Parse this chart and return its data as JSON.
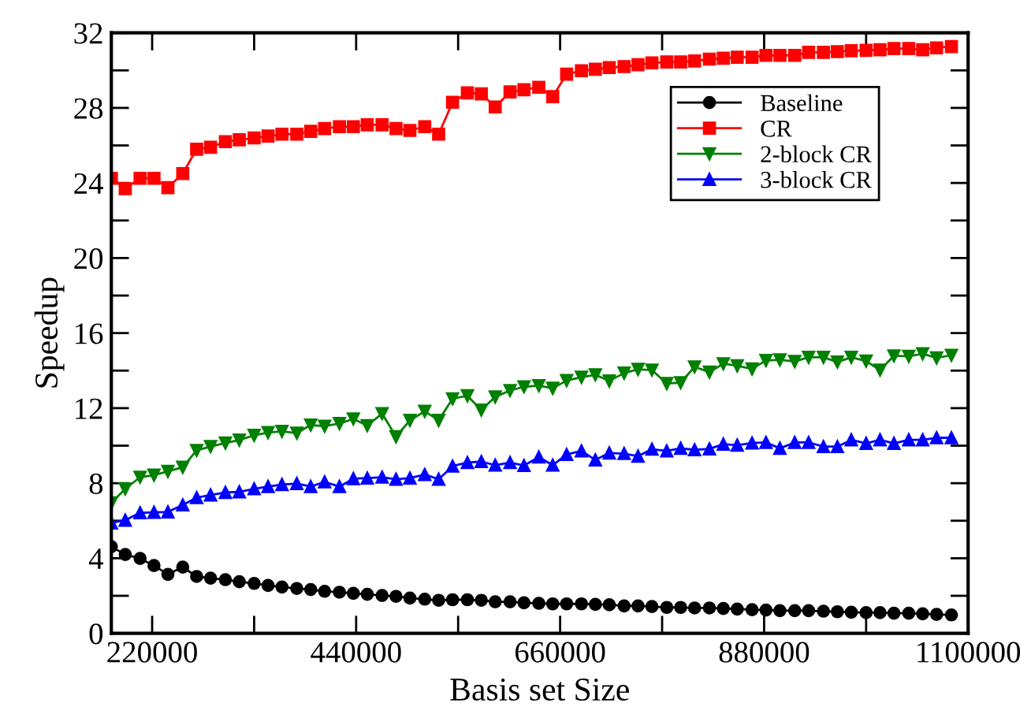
{
  "chart_data": {
    "type": "line",
    "xlabel": "Basis set Size",
    "ylabel": "Speedup",
    "x": [
      176000,
      191000,
      207000,
      222000,
      237000,
      253000,
      268000,
      283000,
      299000,
      314000,
      330000,
      345000,
      360000,
      376000,
      391000,
      406000,
      422000,
      437000,
      452000,
      468000,
      483000,
      498000,
      514000,
      529000,
      544000,
      560000,
      575000,
      590000,
      606000,
      621000,
      637000,
      652000,
      667000,
      683000,
      698000,
      713000,
      729000,
      744000,
      759000,
      775000,
      790000,
      805000,
      821000,
      836000,
      851000,
      867000,
      882000,
      897000,
      913000,
      928000,
      944000,
      959000,
      974000,
      990000,
      1005000,
      1020000,
      1036000,
      1051000,
      1066000,
      1082000
    ],
    "series": [
      {
        "name": "Baseline",
        "color": "#000000",
        "marker": "circle",
        "values": [
          4.62,
          4.2,
          3.99,
          3.61,
          3.14,
          3.53,
          3.03,
          2.94,
          2.86,
          2.75,
          2.66,
          2.55,
          2.47,
          2.39,
          2.33,
          2.24,
          2.19,
          2.13,
          2.08,
          2.02,
          1.97,
          1.88,
          1.82,
          1.76,
          1.79,
          1.79,
          1.76,
          1.68,
          1.68,
          1.63,
          1.6,
          1.57,
          1.57,
          1.57,
          1.54,
          1.52,
          1.46,
          1.46,
          1.43,
          1.38,
          1.38,
          1.35,
          1.35,
          1.32,
          1.29,
          1.26,
          1.24,
          1.21,
          1.21,
          1.21,
          1.18,
          1.15,
          1.12,
          1.1,
          1.1,
          1.07,
          1.07,
          1.04,
          1.01,
          0.98
        ]
      },
      {
        "name": "CR",
        "color": "#ff0000",
        "marker": "square",
        "values": [
          24.25,
          23.7,
          24.25,
          24.25,
          23.75,
          24.5,
          25.8,
          25.9,
          26.2,
          26.3,
          26.4,
          26.5,
          26.6,
          26.6,
          26.75,
          26.9,
          27.0,
          27.0,
          27.1,
          27.1,
          26.9,
          26.8,
          27.0,
          26.6,
          28.3,
          28.8,
          28.75,
          28.05,
          28.85,
          28.97,
          29.1,
          28.6,
          29.8,
          29.98,
          30.06,
          30.15,
          30.2,
          30.3,
          30.4,
          30.45,
          30.45,
          30.5,
          30.6,
          30.65,
          30.7,
          30.7,
          30.8,
          30.8,
          30.8,
          30.96,
          30.96,
          31.0,
          31.05,
          31.07,
          31.1,
          31.16,
          31.16,
          31.1,
          31.2,
          31.27
        ]
      },
      {
        "name": "2-block CR",
        "color": "#008000",
        "marker": "triangle-down",
        "values": [
          6.95,
          7.7,
          8.32,
          8.43,
          8.63,
          8.85,
          9.75,
          9.95,
          10.14,
          10.3,
          10.55,
          10.7,
          10.76,
          10.67,
          11.1,
          11.04,
          11.18,
          11.43,
          11.07,
          11.71,
          10.48,
          11.35,
          11.83,
          11.35,
          12.5,
          12.66,
          11.9,
          12.6,
          12.94,
          13.14,
          13.2,
          13.06,
          13.47,
          13.65,
          13.78,
          13.45,
          13.87,
          14.07,
          14.03,
          13.31,
          13.36,
          14.2,
          13.92,
          14.37,
          14.26,
          14.09,
          14.54,
          14.57,
          14.49,
          14.71,
          14.71,
          14.46,
          14.71,
          14.51,
          14.03,
          14.79,
          14.76,
          14.9,
          14.68,
          14.82
        ]
      },
      {
        "name": "3-block CR",
        "color": "#0000ff",
        "marker": "triangle",
        "values": [
          5.88,
          6.03,
          6.42,
          6.45,
          6.47,
          6.84,
          7.23,
          7.37,
          7.51,
          7.54,
          7.7,
          7.82,
          7.93,
          7.98,
          7.82,
          8.07,
          7.82,
          8.24,
          8.27,
          8.32,
          8.21,
          8.27,
          8.46,
          8.21,
          8.91,
          9.1,
          9.15,
          8.96,
          9.1,
          8.94,
          9.39,
          8.96,
          9.53,
          9.72,
          9.24,
          9.61,
          9.58,
          9.44,
          9.81,
          9.72,
          9.86,
          9.78,
          9.83,
          10.08,
          10.03,
          10.14,
          10.17,
          9.86,
          10.17,
          10.17,
          9.95,
          9.95,
          10.31,
          10.12,
          10.31,
          10.12,
          10.31,
          10.31,
          10.42,
          10.42
        ]
      }
    ],
    "xlim": [
      176000,
      1100000
    ],
    "xticks": [
      220000,
      {
        "value": 330000,
        "label": null
      },
      440000,
      {
        "value": 550000,
        "label": null
      },
      660000,
      {
        "value": 770000,
        "label": null
      },
      880000,
      {
        "value": 990000,
        "label": null
      },
      1100000
    ],
    "ylim": [
      0,
      32
    ],
    "yticks": [
      0,
      {
        "value": 2,
        "label": null
      },
      4,
      {
        "value": 6,
        "label": null
      },
      8,
      {
        "value": 10,
        "label": null
      },
      12,
      {
        "value": 14,
        "label": null
      },
      16,
      {
        "value": 18,
        "label": null
      },
      20,
      {
        "value": 22,
        "label": null
      },
      24,
      {
        "value": 26,
        "label": null
      },
      28,
      {
        "value": 30,
        "label": null
      },
      32
    ],
    "grid": false,
    "legend": "top right",
    "line_style": "solid"
  }
}
